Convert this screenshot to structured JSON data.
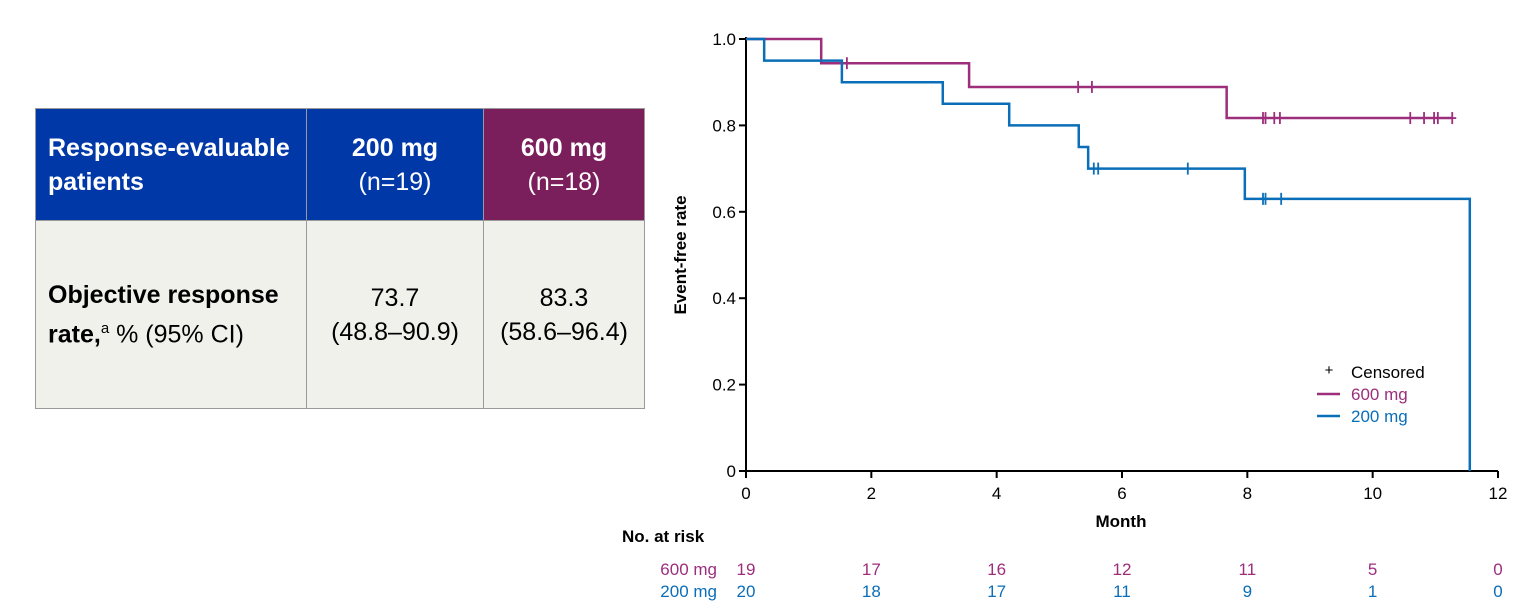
{
  "table": {
    "header": {
      "label": "Response-evaluable patients",
      "col1_title": "200 mg",
      "col1_n": "(n=19)",
      "col2_title": "600 mg",
      "col2_n": "(n=18)"
    },
    "row": {
      "label_bold": "Objective response rate,",
      "label_sup": "a",
      "label_rest": " % (95% CI)",
      "col1_value": "73.7",
      "col1_ci": "(48.8–90.9)",
      "col2_value": "83.3",
      "col2_ci": "(58.6–96.4)"
    },
    "colors": {
      "header_200": "#0038A8",
      "header_600": "#7A1E5C",
      "body": "#F1F1EC"
    }
  },
  "chart_data": {
    "type": "line",
    "subtype": "kaplan-meier step",
    "xlabel": "Month",
    "ylabel": "Event-free rate",
    "xlim": [
      0,
      12
    ],
    "ylim": [
      0,
      1.0
    ],
    "xticks": [
      0,
      2,
      4,
      6,
      8,
      10,
      12
    ],
    "yticks": [
      "0",
      "0.2",
      "0.4",
      "0.6",
      "0.8",
      "1.0"
    ],
    "grid": false,
    "legend": {
      "placement": "bottom-right",
      "censored_label": "Censored",
      "censored_symbol": "+"
    },
    "series": [
      {
        "name": "600 mg",
        "color": "#9C2E7C",
        "steps": [
          [
            0,
            1.0
          ],
          [
            1.2,
            0.944
          ],
          [
            3.56,
            0.889
          ],
          [
            7.67,
            0.817
          ]
        ],
        "end": 11.28,
        "censored": [
          1.61,
          5.3,
          5.52,
          8.25,
          8.29,
          8.43,
          8.52,
          10.6,
          10.82,
          10.98,
          11.04,
          11.27
        ]
      },
      {
        "name": "200 mg",
        "color": "#0A6EB8",
        "steps": [
          [
            0,
            1.0
          ],
          [
            0.29,
            0.95
          ],
          [
            1.53,
            0.9
          ],
          [
            3.14,
            0.85
          ],
          [
            4.2,
            0.8
          ],
          [
            5.31,
            0.75
          ],
          [
            5.46,
            0.7
          ],
          [
            7.96,
            0.63
          ],
          [
            11.55,
            0
          ]
        ],
        "end": 11.55,
        "censored": [
          5.55,
          5.62,
          7.05,
          8.25,
          8.29,
          8.54
        ]
      }
    ],
    "risk_table": {
      "title": "No. at risk",
      "times": [
        0,
        2,
        4,
        6,
        8,
        10,
        12
      ],
      "rows": [
        {
          "name": "600 mg",
          "color": "#9C2E7C",
          "values": [
            19,
            17,
            16,
            12,
            11,
            5,
            0
          ]
        },
        {
          "name": "200 mg",
          "color": "#0A6EB8",
          "values": [
            20,
            18,
            17,
            11,
            9,
            1,
            0
          ]
        }
      ]
    }
  }
}
